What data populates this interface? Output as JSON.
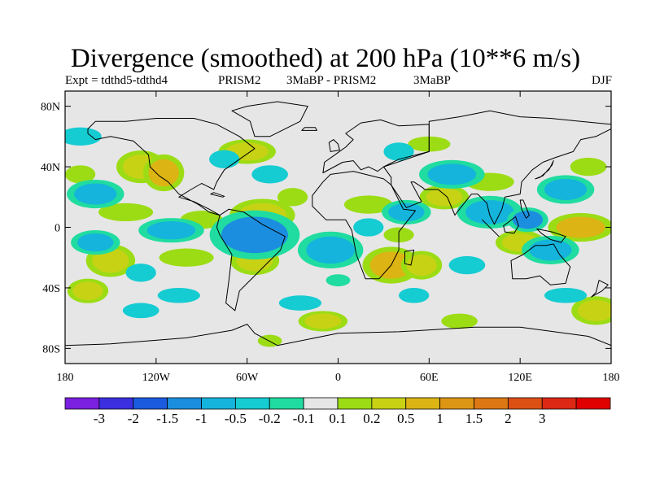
{
  "title": "Divergence (smoothed) at 200 hPa (10**6 m/s)",
  "subtitle": {
    "left": "Expt = tdthd5-tdthd4",
    "center1": "PRISM2",
    "center2": "3MaBP - PRISM2",
    "center3": "3MaBP",
    "right": "DJF"
  },
  "map": {
    "projection": "cylindrical-equidistant",
    "lon_range": [
      -180,
      180
    ],
    "lat_range": [
      -90,
      90
    ],
    "background_color": "#e6e6e6",
    "y_ticks": [
      {
        "lat": 80,
        "label": "80N"
      },
      {
        "lat": 40,
        "label": "40N"
      },
      {
        "lat": 0,
        "label": "0"
      },
      {
        "lat": -40,
        "label": "40S"
      },
      {
        "lat": -80,
        "label": "80S"
      }
    ],
    "x_ticks": [
      {
        "lon": -180,
        "label": "180"
      },
      {
        "lon": -120,
        "label": "120W"
      },
      {
        "lon": -60,
        "label": "60W"
      },
      {
        "lon": 0,
        "label": "0"
      },
      {
        "lon": 60,
        "label": "60E"
      },
      {
        "lon": 120,
        "label": "120E"
      },
      {
        "lon": 180,
        "label": "180"
      }
    ],
    "positive_blobs": [
      {
        "lon": -130,
        "lat": 40,
        "rx": 12,
        "ry": 8,
        "level": 0.5
      },
      {
        "lon": -115,
        "lat": 36,
        "rx": 10,
        "ry": 9,
        "level": 1
      },
      {
        "lon": -170,
        "lat": 35,
        "rx": 10,
        "ry": 6,
        "level": 0.2
      },
      {
        "lon": -60,
        "lat": 50,
        "rx": 14,
        "ry": 6,
        "level": 0.5
      },
      {
        "lon": -50,
        "lat": 8,
        "rx": 16,
        "ry": 8,
        "level": 0.5
      },
      {
        "lon": -30,
        "lat": 20,
        "rx": 10,
        "ry": 6,
        "level": 0.2
      },
      {
        "lon": -90,
        "lat": 5,
        "rx": 14,
        "ry": 6,
        "level": 0.2
      },
      {
        "lon": -140,
        "lat": 10,
        "rx": 18,
        "ry": 6,
        "level": 0.2
      },
      {
        "lon": -100,
        "lat": -20,
        "rx": 18,
        "ry": 6,
        "level": 0.2
      },
      {
        "lon": -150,
        "lat": -22,
        "rx": 12,
        "ry": 8,
        "level": 0.5
      },
      {
        "lon": -165,
        "lat": -42,
        "rx": 10,
        "ry": 6,
        "level": 0.5
      },
      {
        "lon": -55,
        "lat": -22,
        "rx": 12,
        "ry": 7,
        "level": 0.5
      },
      {
        "lon": 20,
        "lat": 15,
        "rx": 16,
        "ry": 6,
        "level": 0.2
      },
      {
        "lon": 40,
        "lat": -5,
        "rx": 10,
        "ry": 5,
        "level": 0.2
      },
      {
        "lon": 35,
        "lat": -25,
        "rx": 14,
        "ry": 9,
        "level": 1
      },
      {
        "lon": 55,
        "lat": -25,
        "rx": 10,
        "ry": 7,
        "level": 0.5
      },
      {
        "lon": 60,
        "lat": 55,
        "rx": 14,
        "ry": 5,
        "level": 0.2
      },
      {
        "lon": 70,
        "lat": 20,
        "rx": 12,
        "ry": 6,
        "level": 0.5
      },
      {
        "lon": 100,
        "lat": 30,
        "rx": 16,
        "ry": 6,
        "level": 0.2
      },
      {
        "lon": 160,
        "lat": 0,
        "rx": 16,
        "ry": 7,
        "level": 1
      },
      {
        "lon": 120,
        "lat": -10,
        "rx": 12,
        "ry": 6,
        "level": 0.5
      },
      {
        "lon": 165,
        "lat": 40,
        "rx": 12,
        "ry": 6,
        "level": 0.2
      },
      {
        "lon": -10,
        "lat": -62,
        "rx": 12,
        "ry": 5,
        "level": 0.5
      },
      {
        "lon": 80,
        "lat": -62,
        "rx": 12,
        "ry": 5,
        "level": 0.2
      },
      {
        "lon": 170,
        "lat": -55,
        "rx": 12,
        "ry": 7,
        "level": 0.5
      },
      {
        "lon": -45,
        "lat": -75,
        "rx": 8,
        "ry": 4,
        "level": 0.2
      }
    ],
    "negative_blobs": [
      {
        "lon": -170,
        "lat": 60,
        "rx": 14,
        "ry": 6,
        "level": -0.2
      },
      {
        "lon": -160,
        "lat": 22,
        "rx": 14,
        "ry": 7,
        "level": -0.5
      },
      {
        "lon": -75,
        "lat": 45,
        "rx": 10,
        "ry": 6,
        "level": -0.2
      },
      {
        "lon": -45,
        "lat": 35,
        "rx": 12,
        "ry": 6,
        "level": -0.2
      },
      {
        "lon": -55,
        "lat": -5,
        "rx": 22,
        "ry": 12,
        "level": -1
      },
      {
        "lon": -110,
        "lat": -2,
        "rx": 16,
        "ry": 6,
        "level": -0.5
      },
      {
        "lon": -160,
        "lat": -10,
        "rx": 12,
        "ry": 6,
        "level": -0.5
      },
      {
        "lon": -130,
        "lat": -30,
        "rx": 10,
        "ry": 6,
        "level": -0.2
      },
      {
        "lon": -105,
        "lat": -45,
        "rx": 14,
        "ry": 5,
        "level": -0.2
      },
      {
        "lon": -5,
        "lat": -15,
        "rx": 16,
        "ry": 9,
        "level": -0.5
      },
      {
        "lon": 20,
        "lat": 0,
        "rx": 10,
        "ry": 6,
        "level": -0.2
      },
      {
        "lon": 40,
        "lat": 50,
        "rx": 10,
        "ry": 6,
        "level": -0.2
      },
      {
        "lon": 75,
        "lat": 35,
        "rx": 16,
        "ry": 7,
        "level": -0.5
      },
      {
        "lon": 45,
        "lat": 10,
        "rx": 12,
        "ry": 6,
        "level": -0.5
      },
      {
        "lon": 100,
        "lat": 10,
        "rx": 16,
        "ry": 8,
        "level": -0.5
      },
      {
        "lon": 125,
        "lat": 5,
        "rx": 10,
        "ry": 6,
        "level": -1
      },
      {
        "lon": 150,
        "lat": 25,
        "rx": 14,
        "ry": 7,
        "level": -0.5
      },
      {
        "lon": 140,
        "lat": -15,
        "rx": 14,
        "ry": 7,
        "level": -0.5
      },
      {
        "lon": 85,
        "lat": -25,
        "rx": 12,
        "ry": 6,
        "level": -0.2
      },
      {
        "lon": 50,
        "lat": -45,
        "rx": 10,
        "ry": 5,
        "level": -0.2
      },
      {
        "lon": 150,
        "lat": -45,
        "rx": 14,
        "ry": 5,
        "level": -0.2
      },
      {
        "lon": -130,
        "lat": -55,
        "rx": 12,
        "ry": 5,
        "level": -0.2
      },
      {
        "lon": -25,
        "lat": -50,
        "rx": 14,
        "ry": 5,
        "level": -0.2
      },
      {
        "lon": 0,
        "lat": -35,
        "rx": 8,
        "ry": 4,
        "level": -0.1
      }
    ]
  },
  "colorbar": {
    "colors": [
      "#7b1fe0",
      "#3b2fe0",
      "#1b5be0",
      "#1b8ee0",
      "#14b4dc",
      "#14ccd2",
      "#20dca0",
      "#e6e6e6",
      "#9cdc14",
      "#c8d214",
      "#dcb414",
      "#dc9614",
      "#dc7814",
      "#dc5014",
      "#dc2814",
      "#e00000"
    ],
    "labels": [
      "-3",
      "-2",
      "-1.5",
      "-1",
      "-0.5",
      "-0.2",
      "-0.1",
      "0.1",
      "0.2",
      "0.5",
      "1",
      "1.5",
      "2",
      "3"
    ],
    "level_colors": {
      "-1": "#1b8ee0",
      "-0.5": "#14b4dc",
      "-0.2": "#14ccd2",
      "-0.1": "#20dca0",
      "0.2": "#9cdc14",
      "0.5": "#c8d214",
      "1": "#dcb414"
    }
  },
  "landmasses": [
    {
      "name": "north-america",
      "points": [
        [
          -165,
          65
        ],
        [
          -160,
          70
        ],
        [
          -140,
          70
        ],
        [
          -120,
          72
        ],
        [
          -95,
          72
        ],
        [
          -80,
          68
        ],
        [
          -65,
          60
        ],
        [
          -55,
          52
        ],
        [
          -65,
          45
        ],
        [
          -75,
          38
        ],
        [
          -80,
          30
        ],
        [
          -82,
          25
        ],
        [
          -90,
          29
        ],
        [
          -97,
          25
        ],
        [
          -105,
          20
        ],
        [
          -95,
          17
        ],
        [
          -85,
          12
        ],
        [
          -78,
          8
        ],
        [
          -85,
          10
        ],
        [
          -92,
          15
        ],
        [
          -105,
          22
        ],
        [
          -112,
          30
        ],
        [
          -118,
          34
        ],
        [
          -124,
          40
        ],
        [
          -125,
          48
        ],
        [
          -135,
          57
        ],
        [
          -150,
          60
        ],
        [
          -160,
          58
        ],
        [
          -165,
          62
        ]
      ]
    },
    {
      "name": "greenland",
      "points": [
        [
          -55,
          60
        ],
        [
          -45,
          60
        ],
        [
          -25,
          70
        ],
        [
          -20,
          80
        ],
        [
          -40,
          83
        ],
        [
          -60,
          80
        ],
        [
          -70,
          77
        ],
        [
          -58,
          70
        ]
      ]
    },
    {
      "name": "south-america",
      "points": [
        [
          -78,
          8
        ],
        [
          -72,
          12
        ],
        [
          -62,
          10
        ],
        [
          -50,
          2
        ],
        [
          -35,
          -6
        ],
        [
          -38,
          -15
        ],
        [
          -48,
          -25
        ],
        [
          -58,
          -35
        ],
        [
          -65,
          -42
        ],
        [
          -68,
          -55
        ],
        [
          -74,
          -50
        ],
        [
          -72,
          -35
        ],
        [
          -70,
          -18
        ],
        [
          -78,
          -5
        ],
        [
          -80,
          0
        ]
      ]
    },
    {
      "name": "africa",
      "points": [
        [
          -17,
          21
        ],
        [
          -10,
          30
        ],
        [
          -5,
          35
        ],
        [
          10,
          37
        ],
        [
          30,
          32
        ],
        [
          35,
          28
        ],
        [
          43,
          12
        ],
        [
          51,
          11
        ],
        [
          40,
          -3
        ],
        [
          40,
          -15
        ],
        [
          35,
          -25
        ],
        [
          27,
          -34
        ],
        [
          18,
          -34
        ],
        [
          12,
          -18
        ],
        [
          9,
          -2
        ],
        [
          5,
          5
        ],
        [
          -8,
          5
        ],
        [
          -17,
          14
        ]
      ]
    },
    {
      "name": "europe",
      "points": [
        [
          -10,
          36
        ],
        [
          -9,
          43
        ],
        [
          -2,
          48
        ],
        [
          5,
          53
        ],
        [
          10,
          58
        ],
        [
          5,
          62
        ],
        [
          15,
          69
        ],
        [
          28,
          71
        ],
        [
          40,
          67
        ],
        [
          60,
          68
        ],
        [
          60,
          50
        ],
        [
          40,
          45
        ],
        [
          30,
          40
        ],
        [
          26,
          37
        ],
        [
          20,
          40
        ],
        [
          15,
          38
        ],
        [
          10,
          44
        ],
        [
          3,
          43
        ]
      ]
    },
    {
      "name": "asia",
      "points": [
        [
          30,
          40
        ],
        [
          60,
          50
        ],
        [
          60,
          70
        ],
        [
          80,
          73
        ],
        [
          100,
          77
        ],
        [
          120,
          73
        ],
        [
          140,
          72
        ],
        [
          160,
          70
        ],
        [
          180,
          68
        ],
        [
          180,
          65
        ],
        [
          170,
          60
        ],
        [
          160,
          58
        ],
        [
          155,
          50
        ],
        [
          143,
          46
        ],
        [
          135,
          43
        ],
        [
          128,
          38
        ],
        [
          121,
          30
        ],
        [
          120,
          22
        ],
        [
          110,
          20
        ],
        [
          108,
          12
        ],
        [
          103,
          2
        ],
        [
          100,
          8
        ],
        [
          98,
          16
        ],
        [
          92,
          22
        ],
        [
          88,
          22
        ],
        [
          80,
          12
        ],
        [
          77,
          8
        ],
        [
          72,
          20
        ],
        [
          66,
          25
        ],
        [
          57,
          25
        ],
        [
          56,
          26
        ],
        [
          50,
          30
        ],
        [
          48,
          30
        ],
        [
          55,
          17
        ],
        [
          45,
          13
        ],
        [
          35,
          28
        ],
        [
          35,
          33
        ]
      ]
    },
    {
      "name": "australia",
      "points": [
        [
          114,
          -22
        ],
        [
          122,
          -18
        ],
        [
          130,
          -12
        ],
        [
          137,
          -12
        ],
        [
          142,
          -11
        ],
        [
          146,
          -18
        ],
        [
          153,
          -26
        ],
        [
          150,
          -37
        ],
        [
          140,
          -38
        ],
        [
          133,
          -32
        ],
        [
          124,
          -34
        ],
        [
          115,
          -34
        ]
      ]
    },
    {
      "name": "antarctica",
      "points": [
        [
          -180,
          -78
        ],
        [
          -150,
          -77
        ],
        [
          -100,
          -73
        ],
        [
          -70,
          -68
        ],
        [
          -60,
          -64
        ],
        [
          -55,
          -70
        ],
        [
          -40,
          -78
        ],
        [
          0,
          -70
        ],
        [
          40,
          -69
        ],
        [
          90,
          -66
        ],
        [
          120,
          -66
        ],
        [
          165,
          -72
        ],
        [
          180,
          -78
        ],
        [
          180,
          -90
        ],
        [
          -180,
          -90
        ]
      ]
    },
    {
      "name": "madagascar",
      "points": [
        [
          44,
          -16
        ],
        [
          50,
          -15
        ],
        [
          48,
          -25
        ],
        [
          44,
          -24
        ]
      ]
    },
    {
      "name": "borneo",
      "points": [
        [
          109,
          1
        ],
        [
          117,
          7
        ],
        [
          119,
          1
        ],
        [
          116,
          -4
        ],
        [
          110,
          -3
        ]
      ]
    },
    {
      "name": "sumatra",
      "points": [
        [
          95,
          5
        ],
        [
          106,
          -6
        ],
        [
          104,
          -4
        ],
        [
          98,
          2
        ]
      ]
    },
    {
      "name": "new-guinea",
      "points": [
        [
          131,
          -1
        ],
        [
          141,
          -3
        ],
        [
          150,
          -6
        ],
        [
          147,
          -10
        ],
        [
          140,
          -8
        ],
        [
          134,
          -4
        ]
      ]
    },
    {
      "name": "japan",
      "points": [
        [
          130,
          32
        ],
        [
          135,
          34
        ],
        [
          141,
          41
        ],
        [
          142,
          44
        ],
        [
          139,
          38
        ],
        [
          133,
          33
        ]
      ]
    },
    {
      "name": "uk",
      "points": [
        [
          -5,
          50
        ],
        [
          1,
          51
        ],
        [
          0,
          55
        ],
        [
          -3,
          58
        ],
        [
          -6,
          56
        ]
      ]
    },
    {
      "name": "new-zealand",
      "points": [
        [
          172,
          -35
        ],
        [
          178,
          -38
        ],
        [
          174,
          -42
        ],
        [
          167,
          -46
        ],
        [
          170,
          -43
        ]
      ]
    },
    {
      "name": "iceland",
      "points": [
        [
          -24,
          64
        ],
        [
          -14,
          64
        ],
        [
          -15,
          66
        ],
        [
          -22,
          66
        ]
      ]
    },
    {
      "name": "cuba",
      "points": [
        [
          -84,
          22
        ],
        [
          -76,
          20
        ],
        [
          -75,
          20.5
        ],
        [
          -82,
          23
        ]
      ]
    },
    {
      "name": "philippines",
      "points": [
        [
          120,
          18
        ],
        [
          122,
          18
        ],
        [
          126,
          8
        ],
        [
          124,
          6
        ],
        [
          121,
          12
        ]
      ]
    }
  ]
}
